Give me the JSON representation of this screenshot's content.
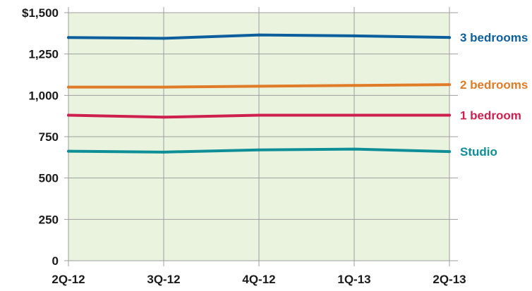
{
  "chart_data": {
    "type": "line",
    "title": "",
    "xlabel": "",
    "ylabel": "",
    "categories": [
      "2Q-12",
      "3Q-12",
      "4Q-12",
      "1Q-13",
      "2Q-13"
    ],
    "ylim": [
      0,
      1500
    ],
    "y_ticks": [
      0,
      250,
      500,
      750,
      1000,
      1250,
      1500
    ],
    "y_tick_labels": [
      "0",
      "250",
      "500",
      "750",
      "1,000",
      "1,250",
      "$1,500"
    ],
    "grid": true,
    "plot_background": "#eaf3de",
    "grid_color": "#9e9e9e",
    "legend": "direct labels at right end of each line",
    "series": [
      {
        "name": "3 bedrooms",
        "color": "#0c5e9c",
        "values": [
          1350,
          1345,
          1365,
          1360,
          1350
        ]
      },
      {
        "name": "2 bedrooms",
        "color": "#e07b28",
        "values": [
          1050,
          1050,
          1055,
          1060,
          1065
        ]
      },
      {
        "name": "1 bedroom",
        "color": "#cf1f4f",
        "values": [
          880,
          868,
          880,
          880,
          880
        ]
      },
      {
        "name": "Studio",
        "color": "#0e8f97",
        "values": [
          662,
          657,
          670,
          675,
          660
        ]
      }
    ]
  }
}
